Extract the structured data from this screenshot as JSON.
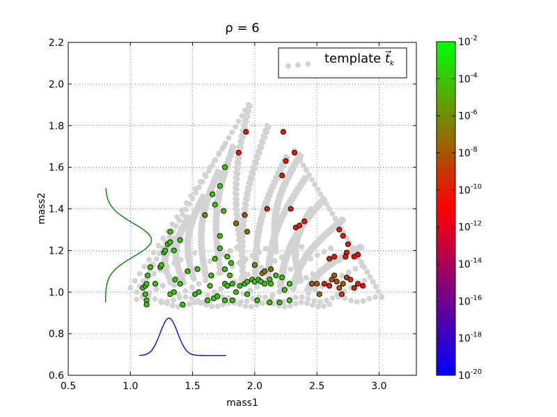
{
  "chart_data": {
    "type": "scatter",
    "title_text": "ρ = 6",
    "xlabel": "mass1",
    "ylabel": "mass2",
    "xlim": [
      0.5,
      3.3
    ],
    "ylim": [
      0.6,
      2.2
    ],
    "xticks": [
      "0.5",
      "1.0",
      "1.5",
      "2.0",
      "2.5",
      "3.0"
    ],
    "yticks": [
      "0.6",
      "0.8",
      "1.0",
      "1.2",
      "1.4",
      "1.6",
      "1.8",
      "2.0",
      "2.2"
    ],
    "grid": true,
    "legend": {
      "label_text": "template",
      "label_math": "t⃗",
      "label_sub": "k",
      "placement": "top-right"
    },
    "template_color": "#d3d3d3",
    "colorbar": {
      "scale": "log",
      "ticks": [
        {
          "base": "10",
          "exp": "-2"
        },
        {
          "base": "10",
          "exp": "-4"
        },
        {
          "base": "10",
          "exp": "-6"
        },
        {
          "base": "10",
          "exp": "-8"
        },
        {
          "base": "10",
          "exp": "-10"
        },
        {
          "base": "10",
          "exp": "-12"
        },
        {
          "base": "10",
          "exp": "-14"
        },
        {
          "base": "10",
          "exp": "-16"
        },
        {
          "base": "10",
          "exp": "-18"
        },
        {
          "base": "10",
          "exp": "-20"
        }
      ],
      "colors": [
        "#00ff00",
        "#ff0000",
        "#0000ff"
      ]
    },
    "measured_points": [
      [
        1.1,
        1.02,
        -4
      ],
      [
        1.12,
        1.03,
        -4
      ],
      [
        1.13,
        1.04,
        -4
      ],
      [
        1.14,
        1.08,
        -4
      ],
      [
        1.16,
        1.12,
        -4
      ],
      [
        1.12,
        0.99,
        -4
      ],
      [
        1.13,
        0.96,
        -4
      ],
      [
        1.13,
        0.94,
        -4
      ],
      [
        1.2,
        1.04,
        -4
      ],
      [
        1.24,
        1.12,
        -4
      ],
      [
        1.25,
        1.13,
        -4
      ],
      [
        1.27,
        1.19,
        -4
      ],
      [
        1.28,
        1.2,
        -4
      ],
      [
        1.3,
        1.23,
        -4
      ],
      [
        1.32,
        1.24,
        -4
      ],
      [
        1.32,
        1.29,
        -4
      ],
      [
        1.35,
        1.2,
        -4
      ],
      [
        1.4,
        1.25,
        -4
      ],
      [
        1.36,
        1.06,
        -4
      ],
      [
        1.4,
        1.04,
        -4
      ],
      [
        1.35,
        1.0,
        -4
      ],
      [
        1.32,
        0.99,
        -4
      ],
      [
        1.42,
        0.94,
        -4
      ],
      [
        1.46,
        1.1,
        -4
      ],
      [
        1.52,
        0.99,
        -4
      ],
      [
        1.54,
        1.11,
        -4
      ],
      [
        1.55,
        1.0,
        -4
      ],
      [
        1.64,
        1.03,
        -4
      ],
      [
        1.62,
        0.96,
        -4
      ],
      [
        1.67,
        0.97,
        -4
      ],
      [
        1.7,
        0.98,
        -4
      ],
      [
        1.65,
        1.08,
        -4
      ],
      [
        1.68,
        1.16,
        -4
      ],
      [
        1.72,
        1.27,
        -4
      ],
      [
        1.72,
        1.21,
        -4
      ],
      [
        1.76,
        1.04,
        -4
      ],
      [
        1.78,
        1.03,
        -4
      ],
      [
        1.76,
        1.11,
        -4
      ],
      [
        1.78,
        1.17,
        -4
      ],
      [
        1.81,
        1.14,
        -4
      ],
      [
        1.8,
        1.08,
        -4
      ],
      [
        1.82,
        1.04,
        -4
      ],
      [
        1.76,
        0.96,
        -4
      ],
      [
        1.82,
        0.96,
        -4
      ],
      [
        1.85,
        1.0,
        -4
      ],
      [
        1.88,
        1.03,
        -4
      ],
      [
        1.92,
        1.04,
        -4
      ],
      [
        1.94,
        1.05,
        -4
      ],
      [
        1.94,
        0.99,
        -4
      ],
      [
        1.98,
        1.06,
        -4
      ],
      [
        2.0,
        1.05,
        -4
      ],
      [
        2.03,
        1.06,
        -4
      ],
      [
        2.05,
        1.05,
        -4
      ],
      [
        2.08,
        1.04,
        -4
      ],
      [
        2.12,
        1.06,
        -4
      ],
      [
        2.13,
        1.04,
        -4
      ],
      [
        2.17,
        1.08,
        -4
      ],
      [
        2.22,
        1.07,
        -4
      ],
      [
        2.24,
        1.01,
        -4
      ],
      [
        2.28,
        1.04,
        -4
      ],
      [
        2.02,
        0.96,
        -4
      ],
      [
        2.12,
        0.95,
        -4
      ],
      [
        2.2,
        0.95,
        -4
      ],
      [
        2.28,
        0.96,
        -4
      ],
      [
        1.66,
        1.47,
        -4
      ],
      [
        1.68,
        1.42,
        -4
      ],
      [
        1.72,
        1.51,
        -4
      ],
      [
        1.76,
        1.6,
        -4
      ],
      [
        1.75,
        1.39,
        -4
      ],
      [
        1.6,
        1.37,
        -6
      ],
      [
        1.85,
        1.33,
        -7
      ],
      [
        1.92,
        1.37,
        -8
      ],
      [
        1.94,
        1.29,
        -7
      ],
      [
        2.0,
        1.13,
        -6
      ],
      [
        2.06,
        1.09,
        -6
      ],
      [
        2.08,
        1.1,
        -7
      ],
      [
        2.13,
        1.11,
        -7
      ],
      [
        2.46,
        1.04,
        -8
      ],
      [
        2.5,
        1.04,
        -8
      ],
      [
        2.52,
        0.99,
        -7
      ],
      [
        2.62,
        1.06,
        -8
      ],
      [
        2.64,
        1.08,
        -8
      ],
      [
        2.66,
        1.05,
        -8
      ],
      [
        2.68,
        1.02,
        -8
      ],
      [
        2.71,
        1.04,
        -8
      ],
      [
        2.7,
        0.99,
        -9
      ],
      [
        2.74,
        1.07,
        -9
      ],
      [
        2.77,
        1.06,
        -9
      ],
      [
        2.8,
        1.02,
        -10
      ],
      [
        2.83,
        1.04,
        -10
      ],
      [
        2.6,
        1.03,
        -10
      ],
      [
        2.56,
        1.04,
        -10
      ],
      [
        1.93,
        1.77,
        -10
      ],
      [
        2.23,
        1.77,
        -10
      ],
      [
        1.87,
        1.67,
        -10
      ],
      [
        2.32,
        1.67,
        -10
      ],
      [
        2.25,
        1.63,
        -10
      ],
      [
        2.22,
        1.56,
        -10
      ],
      [
        2.1,
        1.4,
        -10
      ],
      [
        2.29,
        1.4,
        -10
      ],
      [
        2.33,
        1.31,
        -10
      ],
      [
        2.36,
        1.32,
        -10
      ],
      [
        2.4,
        1.34,
        -10
      ],
      [
        2.68,
        1.3,
        -10
      ],
      [
        2.71,
        1.27,
        -10
      ],
      [
        2.75,
        1.23,
        -10
      ],
      [
        2.74,
        1.19,
        -10
      ],
      [
        2.73,
        1.17,
        -10
      ],
      [
        2.64,
        1.17,
        -10
      ],
      [
        2.6,
        1.16,
        -10
      ],
      [
        2.83,
        1.18,
        -11
      ],
      [
        2.8,
        1.17,
        -11
      ],
      [
        2.87,
        1.03,
        -11
      ]
    ],
    "proj_curve_mass2": "green",
    "proj_curve_mass1": "blue"
  }
}
